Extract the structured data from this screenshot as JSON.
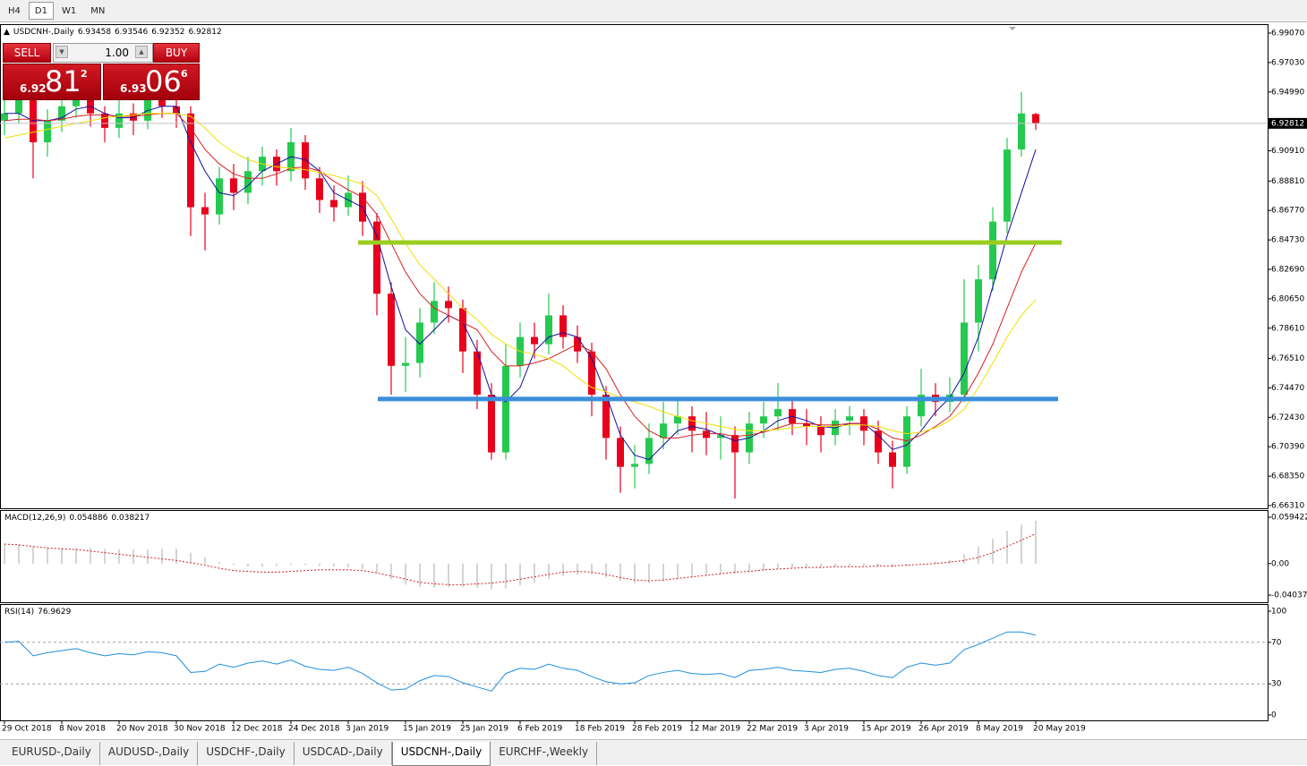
{
  "timeframes": [
    "H4",
    "D1",
    "W1",
    "MN"
  ],
  "active_timeframe": 1,
  "trade_panel": {
    "sell": "SELL",
    "buy": "BUY",
    "lots": "1.00",
    "bid": [
      "6.92",
      "81",
      "2"
    ],
    "ask": [
      "6.93",
      "06",
      "6"
    ]
  },
  "chart_data": [
    {
      "type": "candlestick",
      "title": "USDCNH-,Daily",
      "up_color": "#26c94f",
      "down_color": "#e8001c",
      "categories": [
        "29 Oct 2018",
        null,
        null,
        null,
        "8 Nov 2018",
        null,
        null,
        null,
        "20 Nov 2018",
        null,
        null,
        null,
        "30 Nov 2018",
        null,
        null,
        null,
        "12 Dec 2018",
        null,
        null,
        null,
        "24 Dec 2018",
        null,
        null,
        null,
        "3 Jan 2019",
        null,
        null,
        null,
        "15 Jan 2019",
        null,
        null,
        null,
        "25 Jan 2019",
        null,
        null,
        null,
        "6 Feb 2019",
        null,
        null,
        null,
        "18 Feb 2019",
        null,
        null,
        null,
        "28 Feb 2019",
        null,
        null,
        null,
        "12 Mar 2019",
        null,
        null,
        null,
        "22 Mar 2019",
        null,
        null,
        null,
        "3 Apr 2019",
        null,
        null,
        null,
        "15 Apr 2019",
        null,
        null,
        null,
        "26 Apr 2019",
        null,
        null,
        null,
        "8 May 2019",
        null,
        null,
        null,
        "20 May 2019"
      ],
      "ohlc": [
        [
          6.93,
          6.945,
          6.92,
          6.935
        ],
        [
          6.935,
          6.952,
          6.928,
          6.945
        ],
        [
          6.945,
          6.95,
          6.89,
          6.915
        ],
        [
          6.915,
          6.938,
          6.905,
          6.93
        ],
        [
          6.93,
          6.948,
          6.922,
          6.94
        ],
        [
          6.94,
          6.952,
          6.932,
          6.945
        ],
        [
          6.945,
          6.95,
          6.926,
          6.935
        ],
        [
          6.935,
          6.94,
          6.915,
          6.925
        ],
        [
          6.925,
          6.945,
          6.918,
          6.935
        ],
        [
          6.935,
          6.942,
          6.92,
          6.93
        ],
        [
          6.93,
          6.952,
          6.924,
          6.945
        ],
        [
          6.945,
          6.95,
          6.932,
          6.94
        ],
        [
          6.94,
          6.946,
          6.925,
          6.935
        ],
        [
          6.935,
          6.94,
          6.85,
          6.87
        ],
        [
          6.87,
          6.88,
          6.84,
          6.865
        ],
        [
          6.865,
          6.898,
          6.858,
          6.89
        ],
        [
          6.89,
          6.9,
          6.868,
          6.88
        ],
        [
          6.88,
          6.905,
          6.872,
          6.895
        ],
        [
          6.895,
          6.912,
          6.885,
          6.905
        ],
        [
          6.905,
          6.91,
          6.885,
          6.895
        ],
        [
          6.895,
          6.925,
          6.888,
          6.915
        ],
        [
          6.915,
          6.92,
          6.882,
          6.89
        ],
        [
          6.89,
          6.898,
          6.866,
          6.875
        ],
        [
          6.875,
          6.885,
          6.86,
          6.87
        ],
        [
          6.87,
          6.892,
          6.864,
          6.88
        ],
        [
          6.88,
          6.888,
          6.85,
          6.86
        ],
        [
          6.86,
          6.866,
          6.795,
          6.81
        ],
        [
          6.81,
          6.818,
          6.74,
          6.76
        ],
        [
          6.76,
          6.78,
          6.742,
          6.762
        ],
        [
          6.762,
          6.8,
          6.752,
          6.79
        ],
        [
          6.79,
          6.818,
          6.782,
          6.805
        ],
        [
          6.805,
          6.815,
          6.79,
          6.8
        ],
        [
          6.8,
          6.806,
          6.755,
          6.77
        ],
        [
          6.77,
          6.778,
          6.73,
          6.74
        ],
        [
          6.74,
          6.748,
          6.695,
          6.7
        ],
        [
          6.7,
          6.775,
          6.695,
          6.76
        ],
        [
          6.76,
          6.79,
          6.752,
          6.78
        ],
        [
          6.78,
          6.79,
          6.765,
          6.775
        ],
        [
          6.775,
          6.81,
          6.768,
          6.795
        ],
        [
          6.795,
          6.802,
          6.772,
          6.78
        ],
        [
          6.78,
          6.788,
          6.762,
          6.77
        ],
        [
          6.77,
          6.776,
          6.725,
          6.74
        ],
        [
          6.74,
          6.746,
          6.695,
          6.71
        ],
        [
          6.71,
          6.718,
          6.672,
          6.69
        ],
        [
          6.69,
          6.705,
          6.675,
          6.692
        ],
        [
          6.692,
          6.72,
          6.685,
          6.71
        ],
        [
          6.71,
          6.735,
          6.702,
          6.72
        ],
        [
          6.72,
          6.736,
          6.712,
          6.725
        ],
        [
          6.725,
          6.732,
          6.7,
          6.715
        ],
        [
          6.715,
          6.728,
          6.698,
          6.71
        ],
        [
          6.71,
          6.725,
          6.695,
          6.712
        ],
        [
          6.712,
          6.718,
          6.668,
          6.7
        ],
        [
          6.7,
          6.728,
          6.692,
          6.72
        ],
        [
          6.72,
          6.735,
          6.71,
          6.725
        ],
        [
          6.725,
          6.748,
          6.715,
          6.73
        ],
        [
          6.73,
          6.736,
          6.712,
          6.72
        ],
        [
          6.72,
          6.73,
          6.705,
          6.718
        ],
        [
          6.718,
          6.725,
          6.7,
          6.712
        ],
        [
          6.712,
          6.73,
          6.705,
          6.722
        ],
        [
          6.722,
          6.732,
          6.712,
          6.725
        ],
        [
          6.725,
          6.73,
          6.705,
          6.715
        ],
        [
          6.715,
          6.722,
          6.692,
          6.7
        ],
        [
          6.7,
          6.708,
          6.675,
          6.69
        ],
        [
          6.69,
          6.732,
          6.685,
          6.725
        ],
        [
          6.725,
          6.758,
          6.718,
          6.74
        ],
        [
          6.74,
          6.748,
          6.725,
          6.735
        ],
        [
          6.735,
          6.752,
          6.728,
          6.74
        ],
        [
          6.74,
          6.82,
          6.735,
          6.79
        ],
        [
          6.79,
          6.83,
          6.77,
          6.82
        ],
        [
          6.82,
          6.87,
          6.812,
          6.86
        ],
        [
          6.86,
          6.918,
          6.852,
          6.91
        ],
        [
          6.91,
          6.95,
          6.905,
          6.935
        ],
        [
          6.93458,
          6.93546,
          6.92352,
          6.92812
        ]
      ],
      "series": [
        {
          "color": "#1010a0",
          "values": [
            6.935,
            6.935,
            6.93,
            6.93,
            6.932,
            6.938,
            6.94,
            6.935,
            6.932,
            6.932,
            6.937,
            6.94,
            6.94,
            6.915,
            6.895,
            6.88,
            6.878,
            6.885,
            6.895,
            6.9,
            6.905,
            6.903,
            6.895,
            6.88,
            6.875,
            6.87,
            6.85,
            6.815,
            6.785,
            6.775,
            6.785,
            6.795,
            6.79,
            6.77,
            6.74,
            6.735,
            6.745,
            6.77,
            6.78,
            6.783,
            6.78,
            6.765,
            6.74,
            6.712,
            6.698,
            6.695,
            6.705,
            6.715,
            6.718,
            6.716,
            6.712,
            6.708,
            6.71,
            6.715,
            6.722,
            6.725,
            6.722,
            6.718,
            6.717,
            6.72,
            6.72,
            6.712,
            6.702,
            6.705,
            6.715,
            6.728,
            6.738,
            6.755,
            6.78,
            6.815,
            6.85,
            6.88,
            6.91
          ]
        },
        {
          "color": "#d42020",
          "values": [
            6.93,
            6.931,
            6.931,
            6.93,
            6.931,
            6.933,
            6.934,
            6.934,
            6.933,
            6.933,
            6.934,
            6.935,
            6.935,
            6.925,
            6.91,
            6.9,
            6.893,
            6.89,
            6.89,
            6.893,
            6.897,
            6.898,
            6.895,
            6.888,
            6.882,
            6.877,
            6.865,
            6.845,
            6.825,
            6.81,
            6.8,
            6.795,
            6.79,
            6.785,
            6.77,
            6.76,
            6.76,
            6.762,
            6.765,
            6.77,
            6.775,
            6.77,
            6.758,
            6.74,
            6.725,
            6.715,
            6.71,
            6.71,
            6.712,
            6.713,
            6.713,
            6.711,
            6.712,
            6.714,
            6.717,
            6.72,
            6.72,
            6.719,
            6.719,
            6.72,
            6.72,
            6.716,
            6.71,
            6.708,
            6.712,
            6.718,
            6.725,
            6.738,
            6.755,
            6.775,
            6.8,
            6.825,
            6.845
          ]
        },
        {
          "color": "#f0e000",
          "values": [
            6.918,
            6.92,
            6.922,
            6.924,
            6.926,
            6.928,
            6.93,
            6.932,
            6.933,
            6.934,
            6.935,
            6.935,
            6.935,
            6.933,
            6.925,
            6.915,
            6.908,
            6.903,
            6.9,
            6.898,
            6.897,
            6.896,
            6.894,
            6.892,
            6.889,
            6.886,
            6.878,
            6.862,
            6.845,
            6.83,
            6.82,
            6.81,
            6.8,
            6.792,
            6.782,
            6.775,
            6.77,
            6.768,
            6.765,
            6.76,
            6.752,
            6.745,
            6.742,
            6.738,
            6.735,
            6.732,
            6.728,
            6.725,
            6.722,
            6.72,
            6.718,
            6.716,
            6.715,
            6.715,
            6.716,
            6.717,
            6.718,
            6.718,
            6.718,
            6.719,
            6.719,
            6.718,
            6.715,
            6.713,
            6.714,
            6.717,
            6.722,
            6.73,
            6.745,
            6.762,
            6.78,
            6.795,
            6.806
          ]
        }
      ],
      "hlines": [
        {
          "value": 6.8455,
          "color": "#9acd1e"
        },
        {
          "value": 6.737,
          "color": "#3a8edb"
        }
      ],
      "ylim": [
        6.6631,
        6.9907
      ],
      "yticks": [
        {
          "value": 6.9907,
          "label": "6.99070"
        },
        {
          "value": 6.9703,
          "label": "6.97030"
        },
        {
          "value": 6.9499,
          "label": "6.94990"
        },
        {
          "value": 6.9091,
          "label": "6.90910"
        },
        {
          "value": 6.8881,
          "label": "6.88810"
        },
        {
          "value": 6.8677,
          "label": "6.86770"
        },
        {
          "value": 6.8473,
          "label": "6.84730"
        },
        {
          "value": 6.8269,
          "label": "6.82690"
        },
        {
          "value": 6.8065,
          "label": "6.80650"
        },
        {
          "value": 6.7861,
          "label": "6.78610"
        },
        {
          "value": 6.7651,
          "label": "6.76510"
        },
        {
          "value": 6.7447,
          "label": "6.74470"
        },
        {
          "value": 6.7243,
          "label": "6.72430"
        },
        {
          "value": 6.7039,
          "label": "6.70390"
        },
        {
          "value": 6.6835,
          "label": "6.68350"
        },
        {
          "value": 6.6631,
          "label": "6.66310"
        }
      ]
    },
    {
      "type": "macd",
      "title": "MACD(12,26,9)",
      "color": "#a8a8a8",
      "signal_color": "#d42020",
      "values": [
        0.025,
        0.024,
        0.022,
        0.021,
        0.02,
        0.02,
        0.02,
        0.019,
        0.018,
        0.018,
        0.018,
        0.019,
        0.019,
        0.014,
        0.008,
        0.002,
        -0.002,
        -0.004,
        -0.004,
        -0.003,
        -0.002,
        -0.002,
        -0.003,
        -0.004,
        -0.005,
        -0.007,
        -0.012,
        -0.02,
        -0.027,
        -0.03,
        -0.031,
        -0.03,
        -0.03,
        -0.031,
        -0.033,
        -0.032,
        -0.028,
        -0.024,
        -0.02,
        -0.016,
        -0.014,
        -0.014,
        -0.018,
        -0.022,
        -0.025,
        -0.025,
        -0.023,
        -0.02,
        -0.018,
        -0.016,
        -0.014,
        -0.013,
        -0.011,
        -0.009,
        -0.007,
        -0.006,
        -0.005,
        -0.005,
        -0.004,
        -0.003,
        -0.003,
        -0.004,
        -0.005,
        -0.003,
        0.0,
        0.003,
        0.005,
        0.012,
        0.022,
        0.032,
        0.042,
        0.05,
        0.054886
      ],
      "signal": [
        0.025,
        0.024,
        0.022,
        0.02,
        0.019,
        0.018,
        0.016,
        0.014,
        0.012,
        0.01,
        0.008,
        0.006,
        0.004,
        0.001,
        -0.002,
        -0.006,
        -0.009,
        -0.01,
        -0.011,
        -0.011,
        -0.01,
        -0.009,
        -0.008,
        -0.008,
        -0.008,
        -0.009,
        -0.012,
        -0.016,
        -0.02,
        -0.024,
        -0.026,
        -0.027,
        -0.027,
        -0.026,
        -0.025,
        -0.023,
        -0.02,
        -0.017,
        -0.014,
        -0.011,
        -0.01,
        -0.011,
        -0.014,
        -0.018,
        -0.021,
        -0.022,
        -0.021,
        -0.019,
        -0.017,
        -0.015,
        -0.013,
        -0.011,
        -0.01,
        -0.008,
        -0.007,
        -0.006,
        -0.005,
        -0.005,
        -0.004,
        -0.004,
        -0.004,
        -0.003,
        -0.003,
        -0.002,
        -0.001,
        0.0,
        0.002,
        0.004,
        0.008,
        0.014,
        0.022,
        0.03,
        0.038217
      ],
      "ylim": [
        -0.040371,
        0.059422
      ],
      "yticks": [
        -0.040371,
        {
          "value": 0,
          "label": "0.00"
        },
        0.059422
      ]
    },
    {
      "type": "line",
      "title": "RSI(14)",
      "color": "#1e8fe0",
      "dashed_grid": true,
      "values": [
        70,
        71,
        57,
        60,
        62,
        64,
        60,
        57,
        59,
        58,
        61,
        60,
        57,
        41,
        42,
        49,
        46,
        50,
        52,
        49,
        53,
        47,
        44,
        43,
        46,
        40,
        31,
        24,
        25,
        33,
        38,
        37,
        31,
        27,
        23,
        40,
        45,
        44,
        49,
        45,
        43,
        37,
        32,
        30,
        31,
        38,
        41,
        43,
        40,
        39,
        40,
        36,
        43,
        44,
        46,
        43,
        42,
        41,
        44,
        45,
        42,
        38,
        36,
        46,
        50,
        48,
        50,
        63,
        68,
        74,
        80,
        80,
        76.9629
      ],
      "ylim": [
        0,
        100
      ],
      "yticks": [
        0,
        30,
        70,
        100
      ]
    }
  ],
  "tabs": [
    "EURUSD-,Daily",
    "AUDUSD-,Daily",
    "USDCHF-,Daily",
    "USDCAD-,Daily",
    "USDCNH-,Daily",
    "EURCHF-,Weekly"
  ],
  "active_tab": 4
}
